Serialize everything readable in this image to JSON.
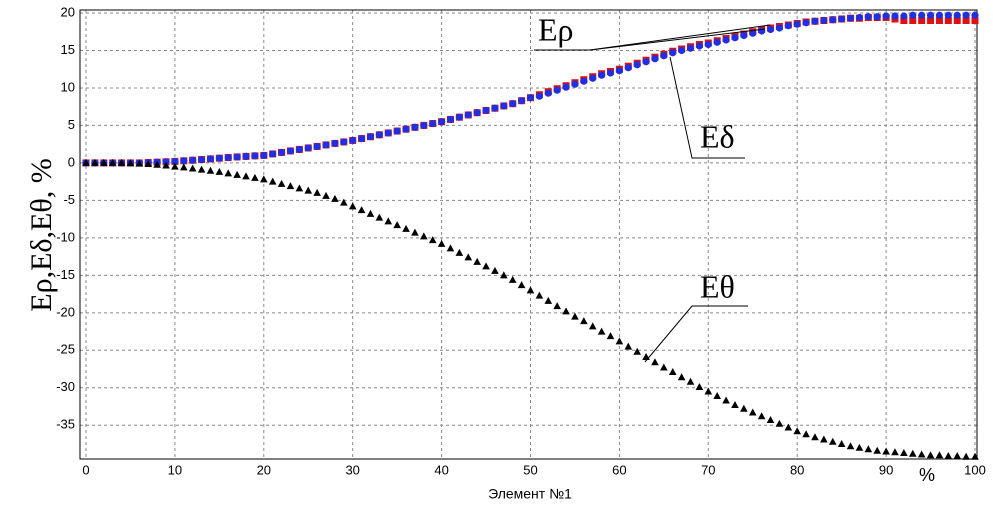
{
  "chart_data": {
    "type": "scatter",
    "y_label": "Eρ,Eδ,Eθ, %",
    "x_label": "Элемент №1",
    "x_unit": "%",
    "annotations": [
      "Eρ",
      "Eδ",
      "Eθ"
    ],
    "xlim": [
      0,
      100
    ],
    "ylim": [
      -39.5,
      20
    ],
    "xticks": [
      0,
      10,
      20,
      30,
      40,
      50,
      60,
      70,
      80,
      90,
      100
    ],
    "yticks": [
      -35,
      -30,
      -25,
      -20,
      -15,
      -10,
      -5,
      0,
      5,
      10,
      15,
      20
    ],
    "grid": true,
    "x": [
      0,
      1,
      2,
      3,
      4,
      5,
      6,
      7,
      8,
      9,
      10,
      11,
      12,
      13,
      14,
      15,
      16,
      17,
      18,
      19,
      20,
      21,
      22,
      23,
      24,
      25,
      26,
      27,
      28,
      29,
      30,
      31,
      32,
      33,
      34,
      35,
      36,
      37,
      38,
      39,
      40,
      41,
      42,
      43,
      44,
      45,
      46,
      47,
      48,
      49,
      50,
      51,
      52,
      53,
      54,
      55,
      56,
      57,
      58,
      59,
      60,
      61,
      62,
      63,
      64,
      65,
      66,
      67,
      68,
      69,
      70,
      71,
      72,
      73,
      74,
      75,
      76,
      77,
      78,
      79,
      80,
      81,
      82,
      83,
      84,
      85,
      86,
      87,
      88,
      89,
      90,
      91,
      92,
      93,
      94,
      95,
      96,
      97,
      98,
      99,
      100
    ],
    "series": [
      {
        "name": "Eρ",
        "color": "#e01010",
        "marker": "square",
        "values": [
          0,
          0,
          0,
          0,
          0,
          0,
          0,
          0.05,
          0.1,
          0.15,
          0.2,
          0.28,
          0.36,
          0.45,
          0.54,
          0.63,
          0.72,
          0.8,
          0.87,
          0.94,
          1.0,
          1.2,
          1.4,
          1.6,
          1.8,
          2.0,
          2.2,
          2.4,
          2.6,
          2.8,
          3.0,
          3.25,
          3.5,
          3.75,
          4.0,
          4.25,
          4.5,
          4.75,
          5.0,
          5.25,
          5.5,
          5.8,
          6.1,
          6.4,
          6.7,
          7.0,
          7.3,
          7.6,
          7.9,
          8.3,
          8.7,
          9.1,
          9.5,
          9.9,
          10.3,
          10.7,
          11.1,
          11.5,
          11.9,
          12.2,
          12.5,
          12.9,
          13.3,
          13.7,
          14.1,
          14.5,
          14.9,
          15.2,
          15.5,
          15.8,
          16.0,
          16.3,
          16.6,
          16.9,
          17.2,
          17.5,
          17.8,
          18.0,
          18.2,
          18.4,
          18.6,
          18.8,
          18.9,
          19.0,
          19.1,
          19.2,
          19.3,
          19.3,
          19.4,
          19.4,
          19.4,
          19.2,
          19.0,
          19.0,
          19.0,
          19.0,
          19.0,
          19.0,
          19.0,
          19.0,
          19.0
        ]
      },
      {
        "name": "Eδ",
        "color": "#2030e0",
        "marker": "circle",
        "values": [
          0,
          0,
          0,
          0,
          0,
          0,
          0,
          0.05,
          0.1,
          0.15,
          0.2,
          0.28,
          0.36,
          0.45,
          0.54,
          0.63,
          0.72,
          0.8,
          0.87,
          0.94,
          1.0,
          1.2,
          1.4,
          1.6,
          1.8,
          2.0,
          2.2,
          2.4,
          2.6,
          2.8,
          3.0,
          3.25,
          3.5,
          3.75,
          4.0,
          4.25,
          4.5,
          4.75,
          5.0,
          5.25,
          5.5,
          5.8,
          6.1,
          6.4,
          6.7,
          7.0,
          7.3,
          7.6,
          7.9,
          8.3,
          8.7,
          8.9,
          9.3,
          9.7,
          10.1,
          10.5,
          10.9,
          11.3,
          11.7,
          12.0,
          12.3,
          12.7,
          13.1,
          13.5,
          13.9,
          14.3,
          14.7,
          15.0,
          15.3,
          15.6,
          15.8,
          16.1,
          16.4,
          16.7,
          17.0,
          17.3,
          17.6,
          17.8,
          18.0,
          18.3,
          18.5,
          18.7,
          18.9,
          19.0,
          19.1,
          19.2,
          19.3,
          19.4,
          19.5,
          19.5,
          19.6,
          19.6,
          19.6,
          19.7,
          19.7,
          19.7,
          19.7,
          19.7,
          19.7,
          19.7,
          19.7
        ]
      },
      {
        "name": "Eθ",
        "color": "#000000",
        "marker": "triangle",
        "values": [
          0,
          0,
          0,
          0,
          0,
          -0.05,
          -0.1,
          -0.15,
          -0.25,
          -0.35,
          -0.5,
          -0.6,
          -0.75,
          -0.9,
          -1.05,
          -1.2,
          -1.4,
          -1.6,
          -1.8,
          -2.0,
          -2.2,
          -2.5,
          -2.8,
          -3.1,
          -3.4,
          -3.7,
          -4.0,
          -4.4,
          -4.8,
          -5.3,
          -5.8,
          -6.3,
          -6.8,
          -7.3,
          -7.8,
          -8.3,
          -8.8,
          -9.3,
          -9.8,
          -10.3,
          -10.8,
          -11.4,
          -12.0,
          -12.6,
          -13.2,
          -13.8,
          -14.4,
          -15.0,
          -15.6,
          -16.3,
          -17.0,
          -17.7,
          -18.4,
          -19.1,
          -19.8,
          -20.5,
          -21.1,
          -21.8,
          -22.5,
          -23.1,
          -23.8,
          -24.5,
          -25.2,
          -25.9,
          -26.6,
          -27.3,
          -27.9,
          -28.6,
          -29.2,
          -29.9,
          -30.5,
          -31.1,
          -31.7,
          -32.3,
          -32.8,
          -33.3,
          -33.8,
          -34.3,
          -34.8,
          -35.3,
          -35.8,
          -36.2,
          -36.6,
          -36.9,
          -37.2,
          -37.5,
          -37.8,
          -38.0,
          -38.2,
          -38.4,
          -38.5,
          -38.6,
          -38.7,
          -38.8,
          -38.9,
          -39.0,
          -39.0,
          -39.1,
          -39.1,
          -39.2,
          -39.2
        ]
      }
    ]
  }
}
